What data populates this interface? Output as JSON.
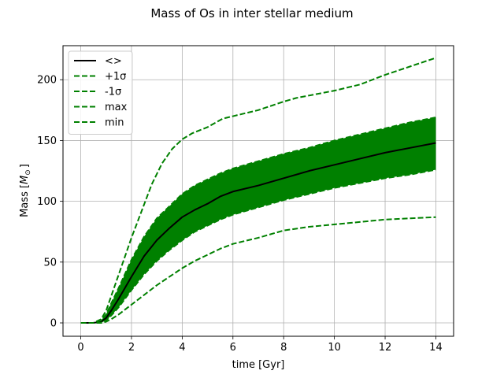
{
  "chart_data": {
    "type": "line",
    "title": "Mass of Os in inter stellar medium",
    "xlabel": "time [Gyr]",
    "ylabel": "Mass [",
    "ylabel_symbol": "M",
    "ylabel_sub": "⊙",
    "ylabel_close": "]",
    "xlim": [
      -0.7,
      14.7
    ],
    "ylim": [
      -11,
      228
    ],
    "xticks": [
      0,
      2,
      4,
      6,
      8,
      10,
      12,
      14
    ],
    "yticks": [
      0,
      50,
      100,
      150,
      200
    ],
    "grid": true,
    "legend_position": "top-left",
    "colors": {
      "mean": "#000000",
      "band": "#008000",
      "dashed": "#008000",
      "grid": "#b0b0b0"
    },
    "series": [
      {
        "name": "<>",
        "style": "solid",
        "x": [
          0,
          0.5,
          0.8,
          1.0,
          1.2,
          1.5,
          2.0,
          2.5,
          3.0,
          3.5,
          4.0,
          4.5,
          5.0,
          5.5,
          6.0,
          7.0,
          8.0,
          9.0,
          10.0,
          11.0,
          12.0,
          13.0,
          14.0
        ],
        "y": [
          0,
          0,
          1,
          4,
          10,
          20,
          38,
          55,
          68,
          78,
          87,
          93,
          98,
          104,
          108,
          113,
          119,
          125,
          130,
          135,
          140,
          144,
          148
        ]
      },
      {
        "name": "+1σ",
        "style": "dashed",
        "x": [
          0,
          0.5,
          0.8,
          1.0,
          1.2,
          1.5,
          2.0,
          2.5,
          3.0,
          3.5,
          4.0,
          4.5,
          5.0,
          5.5,
          6.0,
          7.0,
          8.0,
          9.0,
          10.0,
          11.0,
          12.0,
          13.0,
          14.0
        ],
        "y": [
          0,
          0,
          2,
          7,
          16,
          29,
          52,
          71,
          86,
          96,
          106,
          113,
          118,
          123,
          127,
          133,
          139,
          144,
          150,
          155,
          160,
          165,
          169
        ]
      },
      {
        "name": "-1σ",
        "style": "dashed",
        "x": [
          0,
          0.5,
          0.8,
          1.0,
          1.2,
          1.5,
          2.0,
          2.5,
          3.0,
          3.5,
          4.0,
          4.5,
          5.0,
          5.5,
          6.0,
          7.0,
          8.0,
          9.0,
          10.0,
          11.0,
          12.0,
          13.0,
          14.0
        ],
        "y": [
          0,
          0,
          0,
          2,
          6,
          13,
          27,
          40,
          51,
          60,
          68,
          75,
          80,
          85,
          89,
          95,
          101,
          106,
          111,
          115,
          119,
          122,
          126
        ]
      },
      {
        "name": "max",
        "style": "dashed",
        "x": [
          0,
          0.5,
          0.8,
          1.0,
          1.2,
          1.5,
          2.0,
          2.4,
          2.8,
          3.2,
          3.6,
          4.0,
          4.4,
          5.0,
          5.6,
          6.0,
          7.0,
          8.0,
          8.5,
          9.0,
          10.0,
          11.0,
          12.0,
          13.0,
          14.0
        ],
        "y": [
          0,
          0,
          3,
          10,
          22,
          40,
          70,
          92,
          114,
          131,
          143,
          151,
          156,
          161,
          168,
          170,
          175,
          182,
          185,
          187,
          191,
          196,
          204,
          211,
          218
        ]
      },
      {
        "name": "min",
        "style": "dashed",
        "x": [
          0,
          0.5,
          0.8,
          1.0,
          1.2,
          1.5,
          2.0,
          2.5,
          3.0,
          3.5,
          4.0,
          4.5,
          5.0,
          5.5,
          6.0,
          7.0,
          8.0,
          9.0,
          10.0,
          11.0,
          12.0,
          13.0,
          14.0
        ],
        "y": [
          0,
          0,
          0,
          1,
          3,
          7,
          15,
          23,
          31,
          38,
          45,
          51,
          56,
          61,
          65,
          70,
          76,
          79,
          81,
          83,
          85,
          86,
          87
        ]
      }
    ]
  }
}
